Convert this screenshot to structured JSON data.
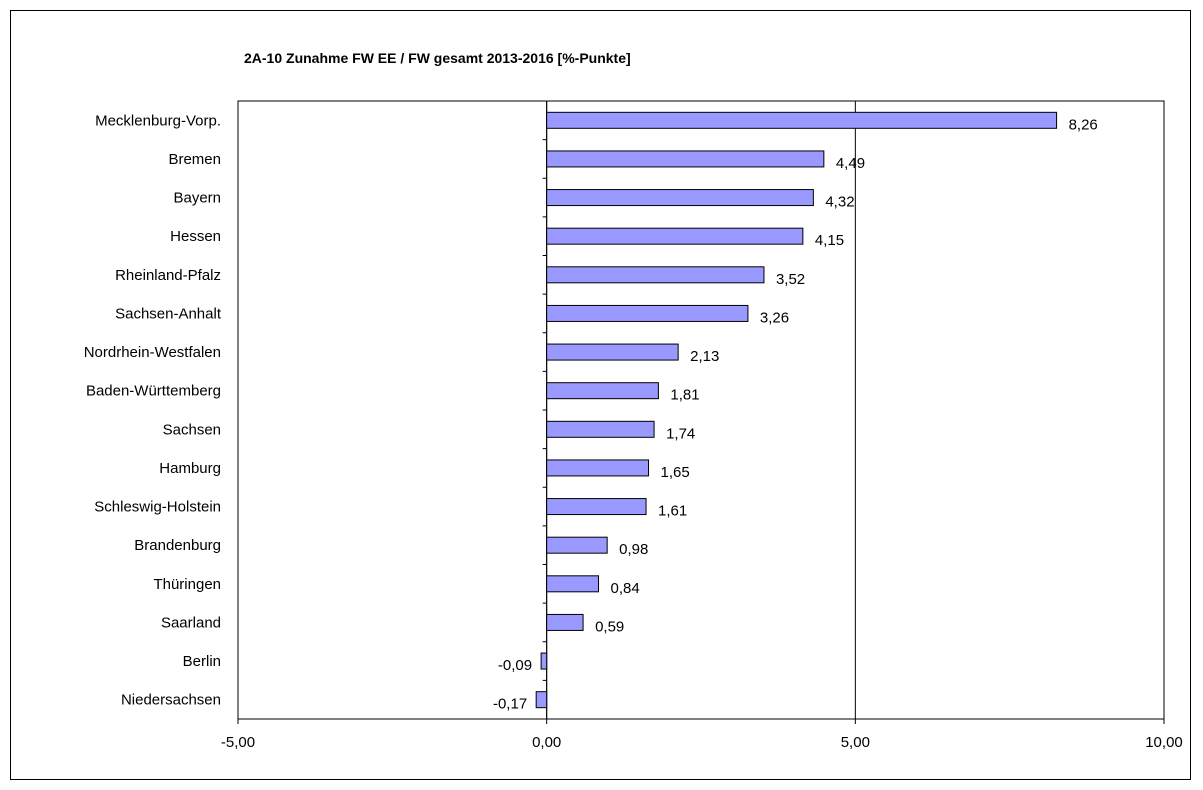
{
  "chart_data": {
    "type": "bar",
    "orientation": "horizontal",
    "title": "2A-10 Zunahme FW EE / FW gesamt 2013-2016  [%-Punkte]",
    "categories": [
      "Mecklenburg-Vorp.",
      "Bremen",
      "Bayern",
      "Hessen",
      "Rheinland-Pfalz",
      "Sachsen-Anhalt",
      "Nordrhein-Westfalen",
      "Baden-Württemberg",
      "Sachsen",
      "Hamburg",
      "Schleswig-Holstein",
      "Brandenburg",
      "Thüringen",
      "Saarland",
      "Berlin",
      "Niedersachsen"
    ],
    "values": [
      8.26,
      4.49,
      4.32,
      4.15,
      3.52,
      3.26,
      2.13,
      1.81,
      1.74,
      1.65,
      1.61,
      0.98,
      0.84,
      0.59,
      -0.09,
      -0.17
    ],
    "value_labels": [
      "8,26",
      "4,49",
      "4,32",
      "4,15",
      "3,52",
      "3,26",
      "2,13",
      "1,81",
      "1,74",
      "1,65",
      "1,61",
      "0,98",
      "0,84",
      "0,59",
      "-0,09",
      "-0,17"
    ],
    "xlim": [
      -5,
      10
    ],
    "x_ticks": [
      -5,
      0,
      5,
      10
    ],
    "x_tick_labels": [
      "-5,00",
      "0,00",
      "5,00",
      "10,00"
    ],
    "xlabel": "",
    "ylabel": "",
    "grid": "vertical major gridlines",
    "legend": "none",
    "bar_color": "#9999FF",
    "bar_border": "#000000"
  }
}
